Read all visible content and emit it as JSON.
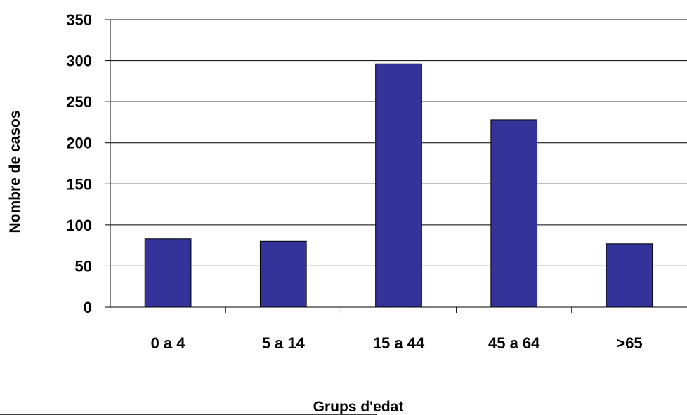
{
  "chart_data": {
    "type": "bar",
    "title": "",
    "xlabel": "Grups d'edat",
    "ylabel": "Nombre de casos",
    "categories": [
      "0 a 4",
      "5 a 14",
      "15 a 44",
      "45 a 64",
      ">65"
    ],
    "values": [
      83,
      80,
      296,
      228,
      77
    ],
    "ylim": [
      0,
      350
    ],
    "yticks": [
      0,
      50,
      100,
      150,
      200,
      250,
      300,
      350
    ],
    "grid": true,
    "bar_color": "#333399",
    "legend": "none"
  }
}
